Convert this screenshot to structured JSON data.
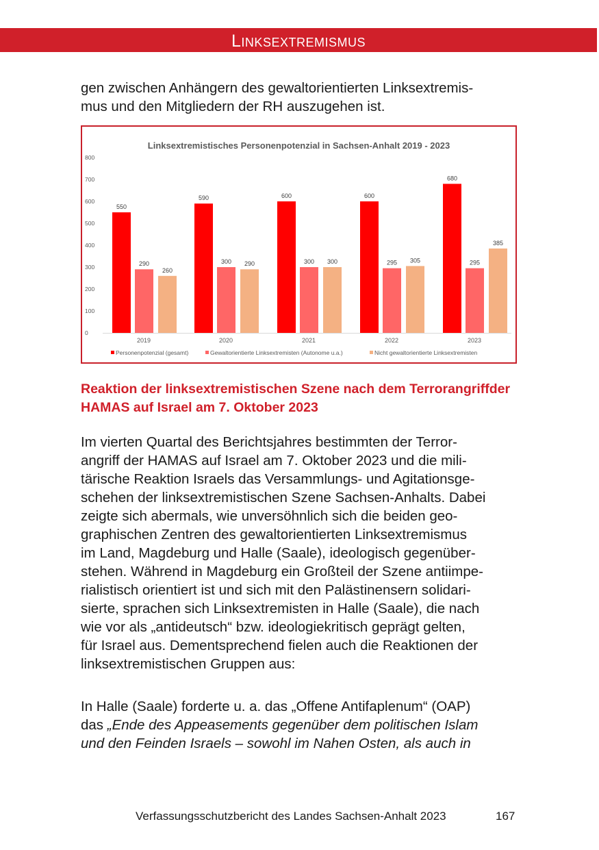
{
  "header": {
    "section_title": "Linksextremismus"
  },
  "intro_lines": [
    "gen zwischen Anhängern des gewaltorientierten Linksextremis-",
    "mus und den Mitgliedern der RH auszugehen ist."
  ],
  "chart_data": {
    "type": "bar",
    "title": "Linksextremistisches Personenpotenzial in Sachsen-Anhalt 2019 - 2023",
    "categories": [
      "2019",
      "2020",
      "2021",
      "2022",
      "2023"
    ],
    "ylim": [
      0,
      800
    ],
    "yticks": [
      0,
      100,
      200,
      300,
      400,
      500,
      600,
      700,
      800
    ],
    "grid": false,
    "legend_position": "bottom",
    "data_labels": true,
    "series": [
      {
        "name": "Personenpotenzial (gesamt)",
        "color": "#ff0000",
        "values": [
          550,
          590,
          600,
          600,
          680
        ]
      },
      {
        "name": "Gewaltorientierte Linksextremisten (Autonome u.a.)",
        "color": "#ff6666",
        "values": [
          290,
          300,
          300,
          295,
          295
        ]
      },
      {
        "name": "Nicht gewaltorientierte Linksextremisten",
        "color": "#f4b183",
        "values": [
          260,
          290,
          300,
          305,
          385
        ]
      }
    ]
  },
  "heading_lines": [
    "Reaktion der linksextremistischen Szene nach dem Terrorangriff",
    "der HAMAS auf Israel am 7. Oktober 2023"
  ],
  "paragraph1_lines": [
    "Im vierten Quartal des Berichtsjahres bestimmten der Terror-",
    "angriff der HAMAS auf Israel am 7. Oktober 2023 und die mili-",
    "tärische Reaktion Israels das Versammlungs- und Agitationsge-",
    "schehen der linksextremistischen Szene Sachsen-Anhalts. Dabei",
    "zeigte sich abermals, wie unversöhnlich sich die beiden geo-",
    "graphischen Zentren des gewaltorientierten Linksextremismus",
    "im Land, Magdeburg und Halle (Saale), ideologisch gegenüber-",
    "stehen. Während in Magdeburg ein Großteil der Szene antiimpe-",
    "rialistisch orientiert ist und sich mit den Palästinensern solidari-",
    "sierte, sprachen sich Linksextremisten in Halle (Saale), die nach",
    "wie vor als „antideutsch“ bzw. ideologiekritisch geprägt gelten,",
    "für Israel aus. Dementsprechend fielen auch die Reaktionen der",
    "linksextremistischen Gruppen aus:"
  ],
  "paragraph2": {
    "line1": "In Halle (Saale) forderte u. a. das „Offene Antifaplenum“ (OAP)",
    "line2_plain": "das ",
    "line2_italic": "„Ende des Appeasements gegenüber dem politischen Islam",
    "line3_italic": "und den Feinden Israels – sowohl im Nahen Osten, als auch in"
  },
  "footer": {
    "publication": "Verfassungsschutzbericht des Landes Sachsen-Anhalt 2023",
    "page_number": "167"
  }
}
